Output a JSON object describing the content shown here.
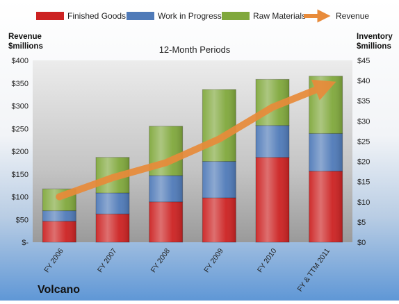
{
  "chart_data": {
    "type": "bar",
    "stacked": true,
    "title": "12-Month Periods",
    "company": "Volcano",
    "categories": [
      "FY 2006",
      "FY 2007",
      "FY 2008",
      "FY 2009",
      "FY 2010",
      "FY & TTM 2011"
    ],
    "left_axis": {
      "label_line1": "Revenue",
      "label_line2": "$millions",
      "ylim": [
        0,
        400
      ],
      "ticks": [
        0,
        50,
        100,
        150,
        200,
        250,
        300,
        350,
        400
      ],
      "tick_labels": [
        "$-",
        "$50",
        "$100",
        "$150",
        "$200",
        "$250",
        "$300",
        "$350",
        "$400"
      ]
    },
    "right_axis": {
      "label_line1": "Inventory",
      "label_line2": "$millions",
      "ylim": [
        0,
        45
      ],
      "ticks": [
        0,
        5,
        10,
        15,
        20,
        25,
        30,
        35,
        40,
        45
      ],
      "tick_labels": [
        "$0",
        "$5",
        "$10",
        "$15",
        "$20",
        "$25",
        "$30",
        "$35",
        "$40",
        "$45"
      ]
    },
    "series": [
      {
        "name": "Finished Goods",
        "axis": "right",
        "color": "#cc2222",
        "values": [
          5.2,
          7.0,
          10.0,
          11.0,
          21.0,
          17.6
        ]
      },
      {
        "name": "Work in Progress",
        "axis": "right",
        "color": "#4f7ab8",
        "values": [
          2.6,
          5.2,
          6.5,
          9.0,
          7.9,
          9.3
        ]
      },
      {
        "name": "Raw Materials",
        "axis": "right",
        "color": "#80a83c",
        "values": [
          5.4,
          8.8,
          12.2,
          17.8,
          11.4,
          14.2
        ]
      },
      {
        "name": "Revenue",
        "axis": "left",
        "type": "line",
        "color": "#e88b3a",
        "values": [
          100,
          142,
          175,
          227,
          297,
          344
        ]
      }
    ],
    "legend_position": "top",
    "grid": false
  }
}
